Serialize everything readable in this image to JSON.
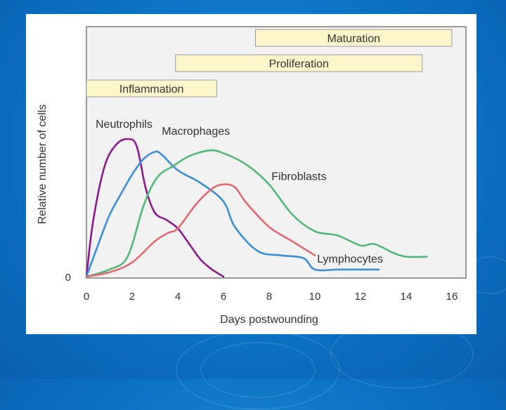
{
  "chart_data": {
    "type": "line",
    "xlabel": "Days postwounding",
    "ylabel": "Relative number of cells",
    "xlim": [
      0,
      16
    ],
    "ylim": [
      0,
      100
    ],
    "x_ticks": [
      "0",
      "2",
      "4",
      "6",
      "8",
      "10",
      "12",
      "14",
      "16"
    ],
    "y_ticks": [
      "0"
    ],
    "grid": false,
    "phases": [
      {
        "name": "Inflammation",
        "start": 0,
        "end": 5.7
      },
      {
        "name": "Proliferation",
        "start": 3.9,
        "end": 14.7
      },
      {
        "name": "Maturation",
        "start": 7.4,
        "end": 16
      }
    ],
    "series": [
      {
        "name": "Neutrophils",
        "color": "#8b1a8b",
        "x": [
          0,
          0.3,
          0.8,
          1.3,
          1.8,
          2.2,
          2.6,
          3.0,
          3.5,
          4.0,
          4.5,
          5.0,
          5.5,
          6.0
        ],
        "y": [
          0,
          40,
          78,
          93,
          97,
          92,
          62,
          45,
          40,
          34,
          23,
          12,
          5,
          0
        ]
      },
      {
        "name": "Macrophages",
        "color": "#3a8fd6",
        "x": [
          0,
          0.5,
          1.0,
          1.5,
          2.0,
          2.5,
          3.0,
          3.3,
          4.0,
          5.0,
          6.0,
          6.5,
          7.5,
          8.5,
          9.5,
          10.0,
          11.0,
          12.0,
          12.8
        ],
        "y": [
          0,
          22,
          43,
          58,
          72,
          83,
          88,
          86,
          75,
          66,
          53,
          35,
          18,
          15,
          13,
          5,
          5,
          5,
          5
        ]
      },
      {
        "name": "Fibroblasts",
        "color": "#52b878",
        "x": [
          0,
          1.0,
          1.8,
          2.5,
          3.1,
          3.8,
          4.5,
          5.4,
          6.0,
          7.0,
          8.0,
          9.0,
          10.0,
          11.0,
          12.0,
          12.6,
          13.4,
          14.0,
          14.9
        ],
        "y": [
          0,
          5,
          14,
          50,
          70,
          78,
          85,
          89,
          87,
          79,
          65,
          44,
          32,
          29,
          22,
          23,
          17,
          14,
          14
        ]
      },
      {
        "name": "Lymphocytes",
        "color": "#e06a72",
        "x": [
          0,
          1.0,
          2.0,
          3.0,
          3.6,
          4.0,
          4.8,
          5.5,
          6.0,
          6.5,
          7.0,
          8.0,
          9.0,
          10.0
        ],
        "y": [
          0,
          3,
          10,
          25,
          31,
          34,
          51,
          62,
          65,
          63,
          52,
          35,
          25,
          15
        ]
      }
    ],
    "series_label_positions": [
      {
        "name": "Neutrophils",
        "x": 0.4,
        "y": 105
      },
      {
        "name": "Macrophages",
        "x": 3.3,
        "y": 100
      },
      {
        "name": "Fibroblasts",
        "x": 8.1,
        "y": 68
      },
      {
        "name": "Lymphocytes",
        "x": 10.1,
        "y": 10
      }
    ]
  }
}
